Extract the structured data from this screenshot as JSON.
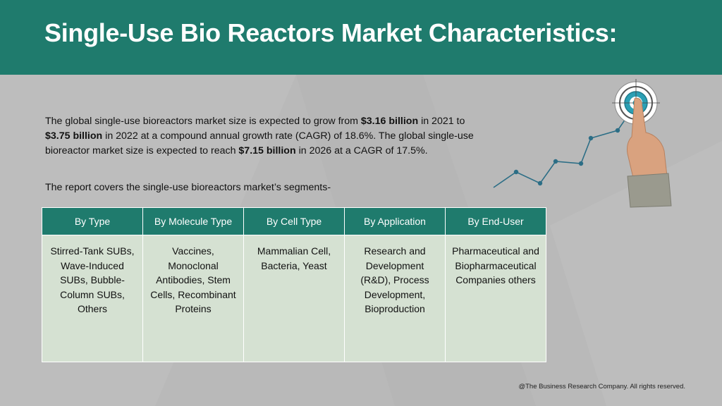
{
  "header": {
    "title": "Single-Use Bio Reactors Market Characteristics:"
  },
  "intro": {
    "p1": "The global single-use bioreactors market size is expected to grow from ",
    "v1": "$3.16 billion",
    "p2": " in 2021 to ",
    "v2": "$3.75 billion",
    "p3": " in 2022 at a compound annual growth rate (CAGR) of 18.6%. The global single-use bioreactor market size is expected to reach ",
    "v3": "$7.15 billion",
    "p4": " in 2026 at a CAGR of 17.5%."
  },
  "segments_note": "The report covers the single-use bioreactors market’s segments-",
  "table": {
    "headers": [
      "By Type",
      "By Molecule Type",
      "By Cell Type",
      "By Application",
      "By End-User"
    ],
    "cells": [
      "Stirred-Tank SUBs, Wave-Induced SUBs, Bubble-Column SUBs, Others",
      "Vaccines, Monoclonal Antibodies, Stem Cells, Recombinant Proteins",
      "Mammalian Cell, Bacteria, Yeast",
      "Research and Development (R&D), Process Development, Bioproduction",
      "Pharmaceutical and Biopharmaceutical Companies others"
    ]
  },
  "footer": "@The Business Research Company. All rights reserved.",
  "colors": {
    "header_bg": "#1f7b6d",
    "table_header_bg": "#1f7b6d",
    "table_cell_bg": "#d5e1d2",
    "page_bg": "#b9b9b9",
    "chart_line": "#2c6e86"
  },
  "decor": {
    "illustration": "target-with-hand-and-growth-line-icon"
  }
}
